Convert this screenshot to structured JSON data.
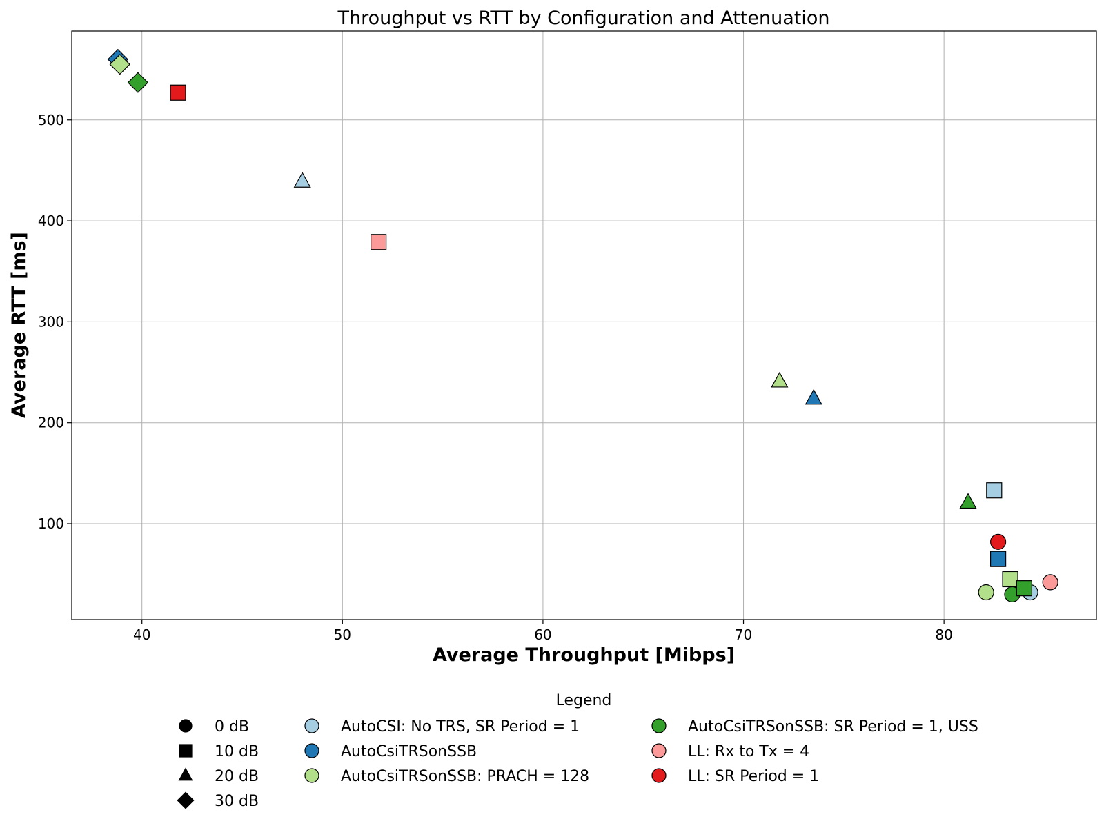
{
  "chart_data": {
    "type": "scatter",
    "title": "Throughput vs RTT by Configuration and Attenuation",
    "xlabel": "Average Throughput [Mibps]",
    "ylabel": "Average RTT [ms]",
    "xlim": [
      36.5,
      87.6
    ],
    "ylim": [
      5,
      588
    ],
    "xticks": [
      40,
      50,
      60,
      70,
      80
    ],
    "yticks": [
      100,
      200,
      300,
      400,
      500
    ],
    "grid": true,
    "legend": {
      "title": "Legend",
      "placement": "bottom-center",
      "attenuations": [
        {
          "label": "0 dB",
          "marker": "circle"
        },
        {
          "label": "10 dB",
          "marker": "square"
        },
        {
          "label": "20 dB",
          "marker": "triangle"
        },
        {
          "label": "30 dB",
          "marker": "diamond"
        }
      ]
    },
    "series": [
      {
        "name": "AutoCSI: No TRS, SR Period = 1",
        "color": "#a6cee3",
        "points": [
          {
            "attenuation": "0 dB",
            "x": 84.3,
            "y": 32
          },
          {
            "attenuation": "10 dB",
            "x": 82.5,
            "y": 133
          },
          {
            "attenuation": "20 dB",
            "x": 48.0,
            "y": 439
          }
        ]
      },
      {
        "name": "AutoCsiTRSonSSB",
        "color": "#1f78b4",
        "points": [
          {
            "attenuation": "10 dB",
            "x": 82.7,
            "y": 65
          },
          {
            "attenuation": "20 dB",
            "x": 73.5,
            "y": 224
          },
          {
            "attenuation": "30 dB",
            "x": 38.8,
            "y": 560
          }
        ]
      },
      {
        "name": "AutoCsiTRSonSSB: PRACH = 128",
        "color": "#b2df8a",
        "points": [
          {
            "attenuation": "0 dB",
            "x": 82.1,
            "y": 32
          },
          {
            "attenuation": "10 dB",
            "x": 83.3,
            "y": 45
          },
          {
            "attenuation": "20 dB",
            "x": 71.8,
            "y": 241
          },
          {
            "attenuation": "30 dB",
            "x": 38.9,
            "y": 555
          }
        ]
      },
      {
        "name": "AutoCsiTRSonSSB: SR Period = 1, USS",
        "color": "#33a02c",
        "points": [
          {
            "attenuation": "0 dB",
            "x": 83.4,
            "y": 30
          },
          {
            "attenuation": "10 dB",
            "x": 84.0,
            "y": 36
          },
          {
            "attenuation": "20 dB",
            "x": 81.2,
            "y": 121
          },
          {
            "attenuation": "30 dB",
            "x": 39.8,
            "y": 537
          }
        ]
      },
      {
        "name": "LL: Rx to Tx = 4",
        "color": "#fb9a99",
        "points": [
          {
            "attenuation": "0 dB",
            "x": 85.3,
            "y": 42
          },
          {
            "attenuation": "10 dB",
            "x": 51.8,
            "y": 379
          }
        ]
      },
      {
        "name": "LL: SR Period = 1",
        "color": "#e31a1c",
        "points": [
          {
            "attenuation": "0 dB",
            "x": 82.7,
            "y": 82
          },
          {
            "attenuation": "10 dB",
            "x": 41.8,
            "y": 527
          }
        ]
      }
    ]
  }
}
